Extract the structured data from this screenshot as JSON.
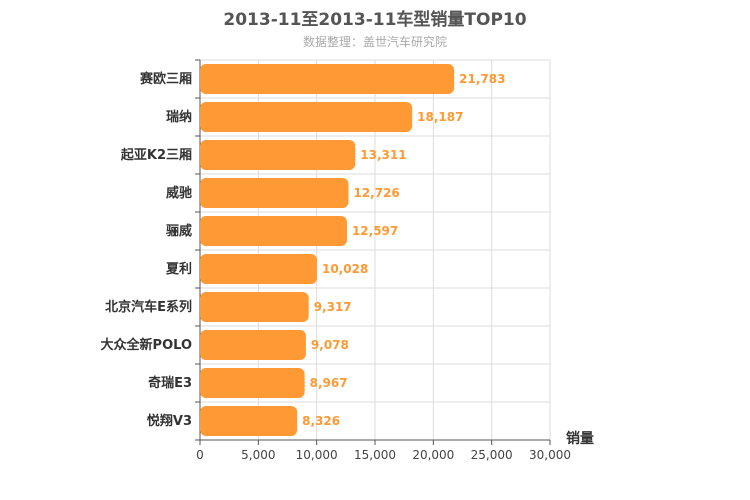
{
  "chart_data": {
    "type": "bar",
    "orientation": "horizontal",
    "title": "2013-11至2013-11车型销量TOP10",
    "subtitle": "数据整理：盖世汽车研究院",
    "categories": [
      "赛欧三厢",
      "瑞纳",
      "起亚K2三厢",
      "威驰",
      "骊威",
      "夏利",
      "北京汽车E系列",
      "大众全新POLO",
      "奇瑞E3",
      "悦翔V3"
    ],
    "values": [
      21783,
      18187,
      13311,
      12726,
      12597,
      10028,
      9317,
      9078,
      8967,
      8326
    ],
    "value_labels": [
      "21,783",
      "18,187",
      "13,311",
      "12,726",
      "12,597",
      "10,028",
      "9,317",
      "9,078",
      "8,967",
      "8,326"
    ],
    "xlabel": "销量",
    "ylabel": "",
    "xlim": [
      0,
      30000
    ],
    "ticks": [
      0,
      5000,
      10000,
      15000,
      20000,
      25000,
      30000
    ],
    "tick_labels": [
      "0",
      "5,000",
      "10,000",
      "15,000",
      "20,000",
      "25,000",
      "30,000"
    ],
    "grid": true,
    "legend": "none",
    "bar_color": "#ff9933"
  }
}
